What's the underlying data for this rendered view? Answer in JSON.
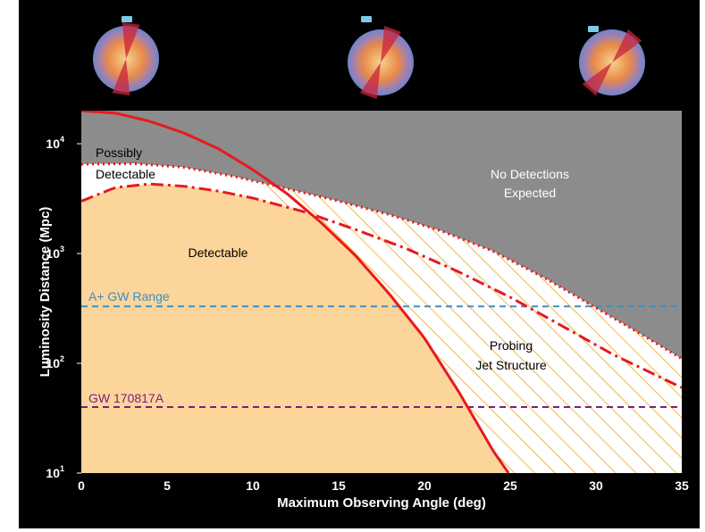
{
  "chart_data": {
    "type": "line",
    "xlabel": "Maximum Observing Angle (deg)",
    "ylabel": "Luminosity Distance (Mpc)",
    "xlim": [
      0,
      35
    ],
    "ylim": [
      10,
      20000
    ],
    "yscale": "log",
    "x_ticks": [
      "0",
      "5",
      "10",
      "15",
      "20",
      "25",
      "30",
      "35"
    ],
    "y_ticks": [
      {
        "base": "10",
        "exp": "1"
      },
      {
        "base": "10",
        "exp": "2"
      },
      {
        "base": "10",
        "exp": "3"
      },
      {
        "base": "10",
        "exp": "4"
      }
    ],
    "series": [
      {
        "style": "solid",
        "color": "#e8191d",
        "x": [
          0,
          2,
          4,
          6,
          8,
          10,
          12,
          14,
          16,
          18,
          20,
          22,
          24,
          24.9
        ],
        "y": [
          20000,
          19000,
          16000,
          12500,
          9000,
          5800,
          3500,
          1900,
          950,
          420,
          170,
          55,
          16,
          10
        ]
      },
      {
        "style": "dotted",
        "color": "#e8191d",
        "x": [
          0,
          3,
          6,
          9,
          12,
          15,
          18,
          21,
          24,
          27,
          30,
          33,
          35
        ],
        "y": [
          6500,
          6600,
          6100,
          5000,
          3900,
          3000,
          2250,
          1600,
          1050,
          600,
          320,
          170,
          110
        ]
      },
      {
        "style": "dashdot",
        "color": "#e8191d",
        "x": [
          0,
          2,
          4,
          6,
          8,
          10,
          13,
          16,
          19,
          22,
          25,
          28,
          31,
          33,
          35
        ],
        "y": [
          3000,
          4000,
          4300,
          4100,
          3700,
          3200,
          2400,
          1650,
          1100,
          680,
          400,
          220,
          120,
          85,
          60
        ]
      }
    ],
    "reference_lines": [
      {
        "label": "A+ GW Range",
        "y": 330,
        "color": "#3a8fc7"
      },
      {
        "label": "GW 170817A",
        "y": 40,
        "color": "#7a1f7a"
      }
    ],
    "regions": [
      {
        "label": "Possibly",
        "label2": "Detectable",
        "color": "#ffffff"
      },
      {
        "label": "Detectable",
        "color": "#fcd59b"
      },
      {
        "label": "No Detections",
        "label2": "Expected",
        "color": "#8c8c8c"
      },
      {
        "label": "Probing",
        "label2": "Jet Structure",
        "color": "#ffffff",
        "hatch": "#f0b849"
      }
    ],
    "grid": false,
    "legend": "none"
  },
  "illustrations": [
    {
      "name": "jet-sphere-on-axis"
    },
    {
      "name": "jet-sphere-moderate-angle"
    },
    {
      "name": "jet-sphere-large-angle"
    }
  ]
}
